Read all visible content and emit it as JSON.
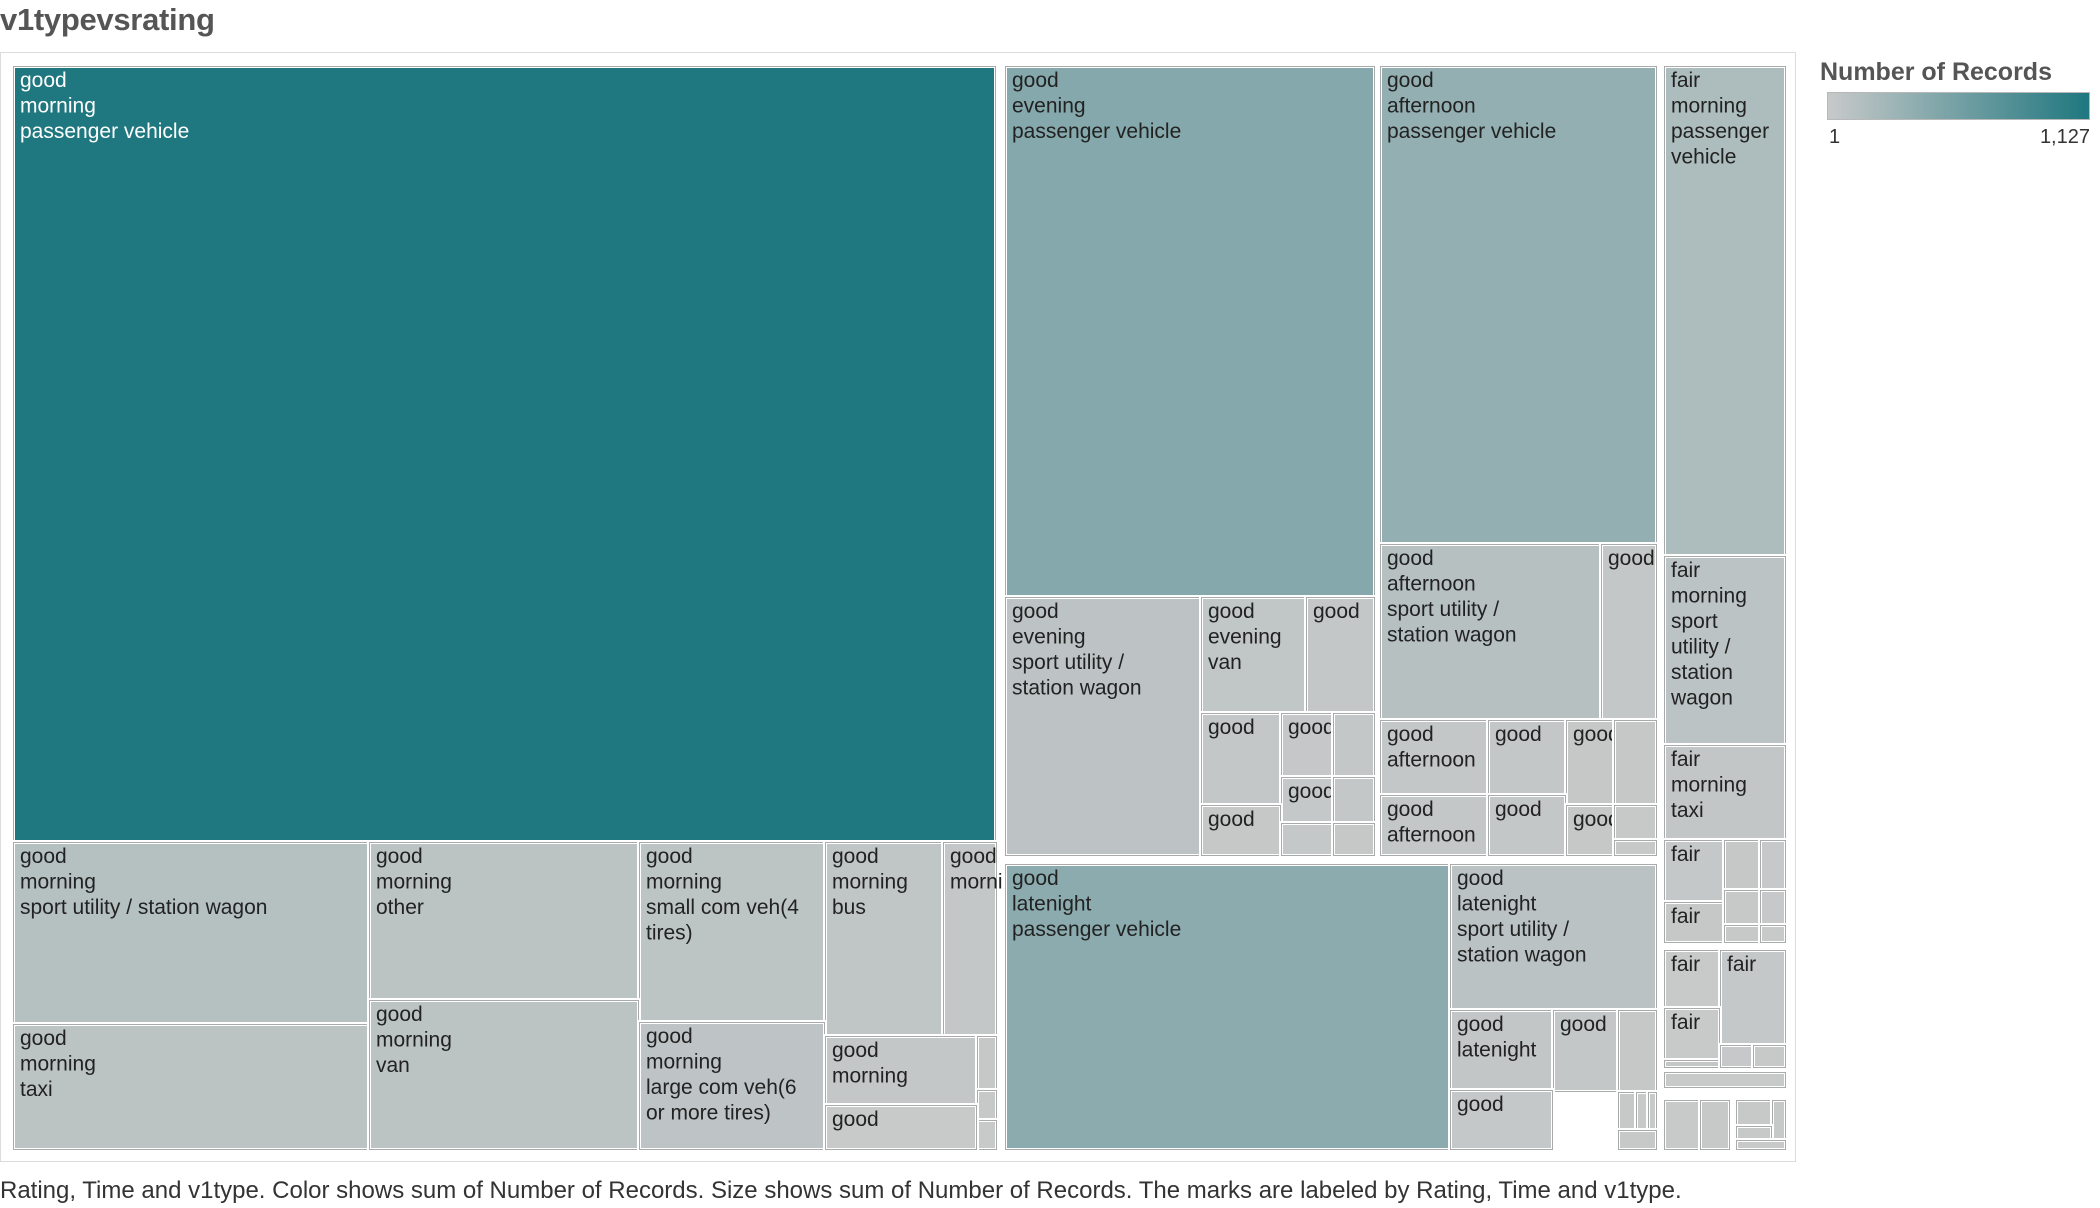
{
  "title": "v1typevsrating",
  "caption": "Rating, Time and v1type.  Color shows sum of Number of Records.  Size shows sum of Number of Records.  The marks are labeled by Rating, Time and v1type.",
  "legend": {
    "title": "Number of Records",
    "min_label": "1",
    "max_label": "1,127",
    "min_color": "#c8c9c9",
    "max_color": "#1f777f"
  },
  "chart_data": {
    "type": "treemap",
    "color_measure": "Number of Records",
    "size_measure": "Number of Records",
    "color_range": [
      1,
      1127
    ],
    "nodes": [
      {
        "rating": "good",
        "time": "morning",
        "v1type": "passenger vehicle",
        "value": 1127
      },
      {
        "rating": "good",
        "time": "morning",
        "v1type": "sport utility / station wagon",
        "value": 85
      },
      {
        "rating": "good",
        "time": "morning",
        "v1type": "other",
        "value": 55
      },
      {
        "rating": "good",
        "time": "morning",
        "v1type": "small com veh(4 tires)",
        "value": 45
      },
      {
        "rating": "good",
        "time": "morning",
        "v1type": "bus",
        "value": 30
      },
      {
        "rating": "good",
        "time": "morning",
        "v1type": "",
        "value": 18
      },
      {
        "rating": "good",
        "time": "morning",
        "v1type": "taxi",
        "value": 58
      },
      {
        "rating": "good",
        "time": "morning",
        "v1type": "van",
        "value": 58
      },
      {
        "rating": "good",
        "time": "morning",
        "v1type": "large com veh(6 or more tires)",
        "value": 40
      },
      {
        "rating": "good",
        "time": "morning",
        "v1type": "",
        "value": 13
      },
      {
        "rating": "good",
        "time": "",
        "v1type": "",
        "value": 8
      },
      {
        "rating": "good",
        "time": "",
        "v1type": "",
        "value": 3
      },
      {
        "rating": "good",
        "time": "",
        "v1type": "",
        "value": 2
      },
      {
        "rating": "good",
        "time": "",
        "v1type": "",
        "value": 2
      },
      {
        "rating": "good",
        "time": "evening",
        "v1type": "passenger vehicle",
        "value": 390
      },
      {
        "rating": "good",
        "time": "evening",
        "v1type": "sport utility / station wagon",
        "value": 48
      },
      {
        "rating": "good",
        "time": "evening",
        "v1type": "van",
        "value": 26
      },
      {
        "rating": "good",
        "time": "",
        "v1type": "",
        "value": 15
      },
      {
        "rating": "good",
        "time": "",
        "v1type": "",
        "value": 18
      },
      {
        "rating": "good",
        "time": "",
        "v1type": "",
        "value": 12
      },
      {
        "rating": "good",
        "time": "",
        "v1type": "",
        "value": 14
      },
      {
        "rating": "good",
        "time": "",
        "v1type": "",
        "value": 9
      },
      {
        "rating": "good",
        "time": "",
        "v1type": "",
        "value": 14
      },
      {
        "rating": "good",
        "time": "",
        "v1type": "",
        "value": 6
      },
      {
        "rating": "good",
        "time": "",
        "v1type": "",
        "value": 10
      },
      {
        "rating": "good",
        "time": "",
        "v1type": "",
        "value": 6
      },
      {
        "rating": "good",
        "time": "afternoon",
        "v1type": "passenger vehicle",
        "value": 290
      },
      {
        "rating": "good",
        "time": "afternoon",
        "v1type": "sport utility / station wagon",
        "value": 80
      },
      {
        "rating": "good",
        "time": "",
        "v1type": "",
        "value": 15
      },
      {
        "rating": "good",
        "time": "afternoon",
        "v1type": "",
        "value": 18
      },
      {
        "rating": "good",
        "time": "",
        "v1type": "",
        "value": 14
      },
      {
        "rating": "good",
        "time": "",
        "v1type": "",
        "value": 8
      },
      {
        "rating": "good",
        "time": "",
        "v1type": "",
        "value": 6
      },
      {
        "rating": "good",
        "time": "afternoon",
        "v1type": "",
        "value": 16
      },
      {
        "rating": "good",
        "time": "",
        "v1type": "",
        "value": 14
      },
      {
        "rating": "good",
        "time": "",
        "v1type": "",
        "value": 8
      },
      {
        "rating": "good",
        "time": "",
        "v1type": "",
        "value": 5
      },
      {
        "rating": "good",
        "time": "",
        "v1type": "",
        "value": 3
      },
      {
        "rating": "good",
        "time": "latenight",
        "v1type": "passenger vehicle",
        "value": 340
      },
      {
        "rating": "good",
        "time": "latenight",
        "v1type": "sport utility / station wagon",
        "value": 60
      },
      {
        "rating": "good",
        "time": "latenight",
        "v1type": "",
        "value": 20
      },
      {
        "rating": "good",
        "time": "",
        "v1type": "",
        "value": 16
      },
      {
        "rating": "good",
        "time": "",
        "v1type": "",
        "value": 7
      },
      {
        "rating": "good",
        "time": "",
        "v1type": "",
        "value": 5
      },
      {
        "rating": "good",
        "time": "",
        "v1type": "",
        "value": 2
      },
      {
        "rating": "good",
        "time": "",
        "v1type": "",
        "value": 2
      },
      {
        "rating": "good",
        "time": "",
        "v1type": "",
        "value": 5
      },
      {
        "rating": "good",
        "time": "",
        "v1type": "",
        "value": 10
      },
      {
        "rating": "fair",
        "time": "morning",
        "v1type": "passenger vehicle",
        "value": 130
      },
      {
        "rating": "fair",
        "time": "morning",
        "v1type": "sport utility / station wagon",
        "value": 50
      },
      {
        "rating": "fair",
        "time": "morning",
        "v1type": "taxi",
        "value": 25
      },
      {
        "rating": "fair",
        "time": "",
        "v1type": "",
        "value": 10
      },
      {
        "rating": "fair",
        "time": "",
        "v1type": "",
        "value": 7
      },
      {
        "rating": "fair",
        "time": "",
        "v1type": "",
        "value": 4
      },
      {
        "rating": "fair",
        "time": "",
        "v1type": "",
        "value": 8
      },
      {
        "rating": "fair",
        "time": "",
        "v1type": "",
        "value": 3
      },
      {
        "rating": "fair",
        "time": "",
        "v1type": "",
        "value": 4
      },
      {
        "rating": "fair",
        "time": "",
        "v1type": "",
        "value": 3
      },
      {
        "rating": "fair",
        "time": "",
        "v1type": "",
        "value": 2
      },
      {
        "rating": "fair",
        "time": "",
        "v1type": "",
        "value": 2
      },
      {
        "rating": "fair",
        "time": "",
        "v1type": "",
        "value": 11
      },
      {
        "rating": "fair",
        "time": "",
        "v1type": "",
        "value": 8
      },
      {
        "rating": "fair",
        "time": "",
        "v1type": "",
        "value": 2
      },
      {
        "rating": "fair",
        "time": "",
        "v1type": "",
        "value": 14
      },
      {
        "rating": "fair",
        "time": "",
        "v1type": "",
        "value": 4
      },
      {
        "rating": "fair",
        "time": "",
        "v1type": "",
        "value": 3
      },
      {
        "rating": "fair",
        "time": "",
        "v1type": "",
        "value": 2
      },
      {
        "rating": "",
        "time": "",
        "v1type": "",
        "value": 2
      },
      {
        "rating": "",
        "time": "",
        "v1type": "",
        "value": 3
      },
      {
        "rating": "",
        "time": "",
        "v1type": "",
        "value": 3
      },
      {
        "rating": "",
        "time": "",
        "v1type": "",
        "value": 5
      },
      {
        "rating": "",
        "time": "",
        "v1type": "",
        "value": 3
      },
      {
        "rating": "",
        "time": "",
        "v1type": "",
        "value": 2
      },
      {
        "rating": "",
        "time": "",
        "v1type": "",
        "value": 1
      }
    ]
  }
}
